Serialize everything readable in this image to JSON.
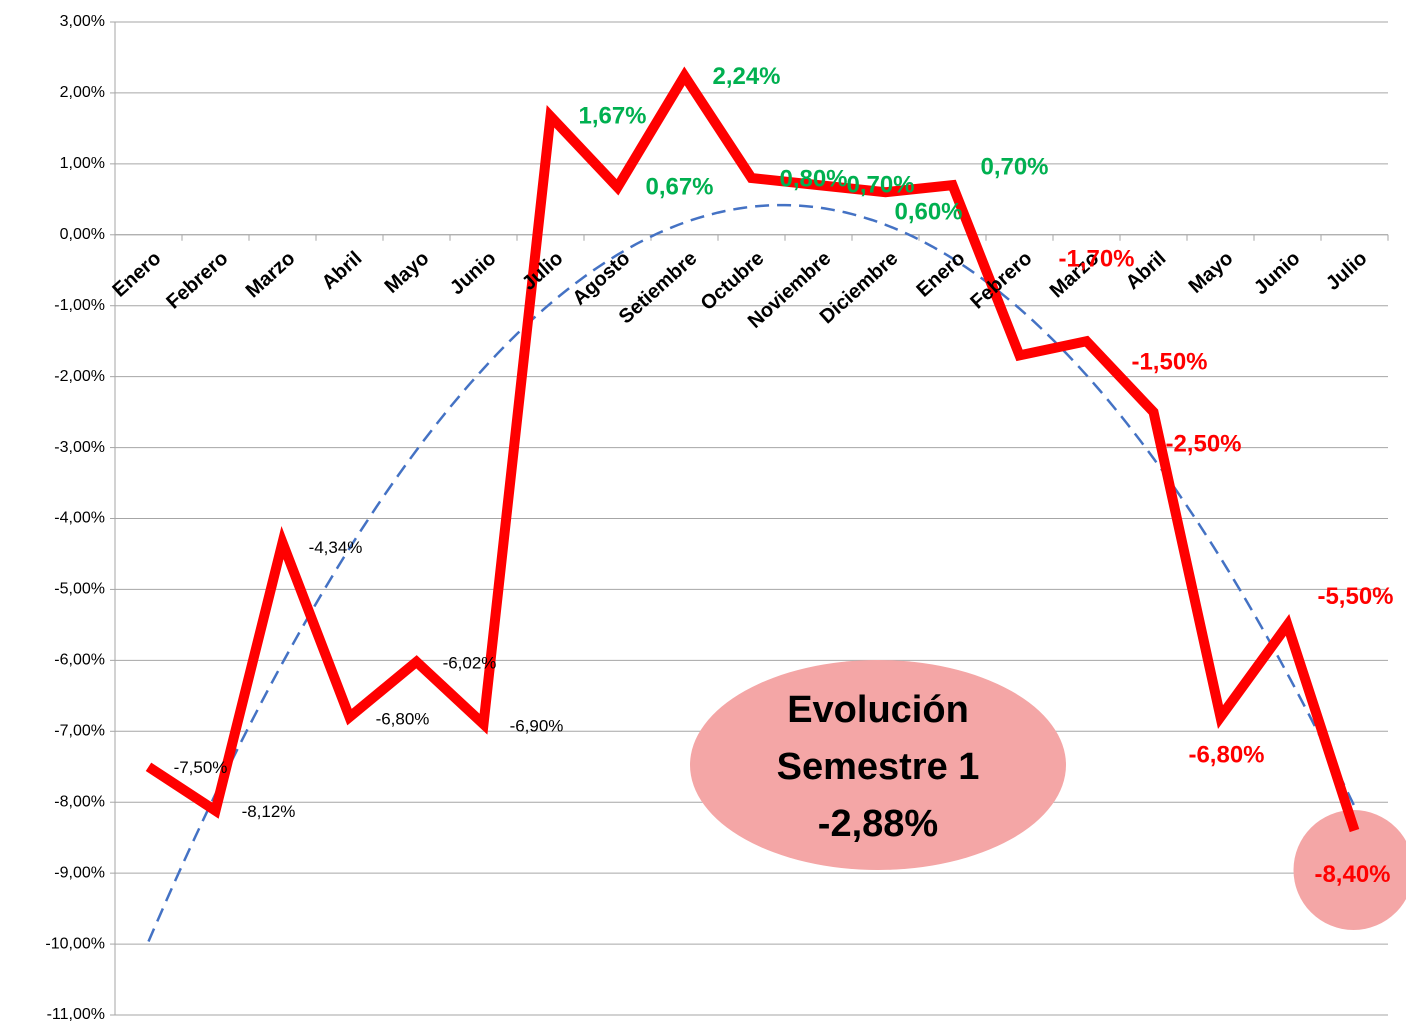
{
  "chart_data": {
    "type": "line",
    "categories": [
      "Enero",
      "Febrero",
      "Marzo",
      "Abril",
      "Mayo",
      "Junio",
      "Julio",
      "Agosto",
      "Setiembre",
      "Octubre",
      "Noviembre",
      "Diciembre",
      "Enero",
      "Febrero",
      "Marzo",
      "Abril",
      "Mayo",
      "Junio",
      "Julio"
    ],
    "series": [
      {
        "color": "#ff0000",
        "values": [
          -7.5,
          -8.12,
          -4.34,
          -6.8,
          -6.02,
          -6.9,
          1.67,
          0.67,
          2.24,
          0.8,
          0.7,
          0.6,
          0.7,
          -1.7,
          -1.5,
          -2.5,
          -6.8,
          -5.5,
          -8.4
        ],
        "value_labels": [
          "-7,50%",
          "-8,12%",
          "-4,34%",
          "-6,80%",
          "-6,02%",
          "-6,90%",
          "1,67%",
          "0,67%",
          "2,24%",
          "0,80%",
          "0,70%",
          "0,60%",
          "0,70%",
          "-1,70%",
          "-1,50%",
          "-2,50%",
          "-6,80%",
          "-5,50%",
          "-8,40%"
        ],
        "value_label_colors": [
          "#000000",
          "#000000",
          "#000000",
          "#000000",
          "#000000",
          "#000000",
          "#00b050",
          "#00b050",
          "#00b050",
          "#00b050",
          "#00b050",
          "#00b050",
          "#00b050",
          "#ff0000",
          "#ff0000",
          "#ff0000",
          "#ff0000",
          "#ff0000",
          "#ff0000"
        ]
      }
    ],
    "trendline": {
      "type": "polynomial",
      "order": 2,
      "color": "#4472c4",
      "dashed": true
    },
    "highlight_point": 18,
    "highlight_color": "#f4a6a6",
    "annotation": {
      "lines": [
        "Evolución",
        "Semestre 1",
        "-2,88%"
      ],
      "color": "#f4a6a6"
    },
    "ylim": [
      -11,
      3
    ],
    "yticks": [
      {
        "value": -11,
        "label": "-11,00%"
      },
      {
        "value": -10,
        "label": "-10,00%"
      },
      {
        "value": -9,
        "label": "-9,00%"
      },
      {
        "value": -8,
        "label": "-8,00%"
      },
      {
        "value": -7,
        "label": "-7,00%"
      },
      {
        "value": -6,
        "label": "-6,00%"
      },
      {
        "value": -5,
        "label": "-5,00%"
      },
      {
        "value": -4,
        "label": "-4,00%"
      },
      {
        "value": -3,
        "label": "-3,00%"
      },
      {
        "value": -2,
        "label": "-2,00%"
      },
      {
        "value": -1,
        "label": "-1,00%"
      },
      {
        "value": 0,
        "label": "0,00%"
      },
      {
        "value": 1,
        "label": "1,00%"
      },
      {
        "value": 2,
        "label": "2,00%"
      },
      {
        "value": 3,
        "label": "3,00%"
      }
    ],
    "grid": true
  }
}
